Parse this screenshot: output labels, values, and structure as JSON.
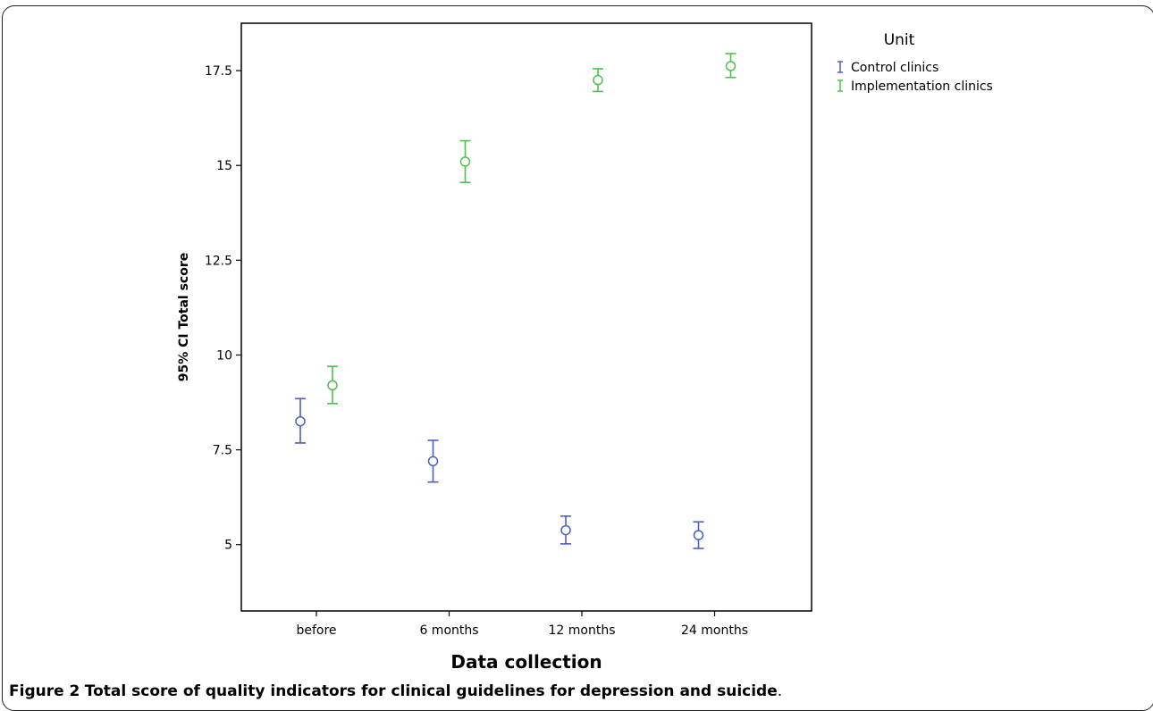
{
  "chart_data": {
    "type": "errorbar",
    "title": "",
    "xlabel": "Data collection",
    "ylabel": "95% CI Total score",
    "categories": [
      "before",
      "6 months",
      "12 months",
      "24 months"
    ],
    "ylim": [
      3.25,
      18.75
    ],
    "yticks": [
      5,
      7.5,
      10,
      12.5,
      15,
      17.5
    ],
    "ytick_labels": [
      "5",
      "7.5",
      "10",
      "12.5",
      "15",
      "17.5"
    ],
    "legend": {
      "title": "Unit",
      "position": "right-outside-top"
    },
    "grid": false,
    "series": [
      {
        "name": "Control clinics",
        "color": "#4a5fc1",
        "mean": [
          8.25,
          7.2,
          5.38,
          5.25
        ],
        "lower": [
          7.68,
          6.65,
          5.02,
          4.9
        ],
        "upper": [
          8.85,
          7.75,
          5.75,
          5.6
        ]
      },
      {
        "name": "Implementation clinics",
        "color": "#4cc24c",
        "mean": [
          9.2,
          15.1,
          17.25,
          17.62
        ],
        "lower": [
          8.72,
          14.55,
          16.95,
          17.32
        ],
        "upper": [
          9.7,
          15.65,
          17.55,
          17.95
        ]
      }
    ]
  },
  "caption": {
    "label": "Figure 2",
    "text": "Total score of quality indicators for clinical guidelines for depression and suicide",
    "end": "."
  }
}
